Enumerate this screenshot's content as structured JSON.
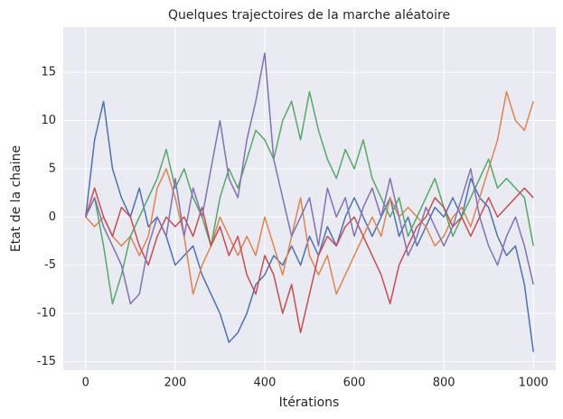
{
  "chart_data": {
    "type": "line",
    "title": "Quelques trajectoires de la marche aléatoire",
    "x_label": "Itérations",
    "y_label": "Etat de la chaine",
    "x": [
      0,
      20,
      40,
      60,
      80,
      100,
      120,
      140,
      160,
      180,
      200,
      220,
      240,
      260,
      280,
      300,
      320,
      340,
      360,
      380,
      400,
      420,
      440,
      460,
      480,
      500,
      520,
      540,
      560,
      580,
      600,
      620,
      640,
      660,
      680,
      700,
      720,
      740,
      760,
      780,
      800,
      820,
      840,
      860,
      880,
      900,
      920,
      940,
      960,
      980,
      1000
    ],
    "series": [
      {
        "color": "#4c72b0",
        "values": [
          0,
          8,
          12,
          5,
          2,
          0,
          3,
          -1,
          0,
          -2,
          -5,
          -4,
          -3,
          -6,
          -8,
          -10,
          -13,
          -12,
          -10,
          -7,
          -6,
          -4,
          -5,
          -3,
          -5,
          -2,
          -4,
          -1,
          -3,
          0,
          2,
          0,
          -2,
          0,
          2,
          -2,
          0,
          -3,
          -1,
          1,
          0,
          2,
          0,
          4,
          2,
          1,
          -2,
          -4,
          -3,
          -7,
          -14
        ]
      },
      {
        "color": "#dd8452",
        "values": [
          0,
          -1,
          0,
          -2,
          -3,
          -2,
          -4,
          -2,
          3,
          5,
          2,
          -2,
          -8,
          -5,
          -3,
          0,
          -2,
          -4,
          -2,
          -4,
          0,
          -3,
          -6,
          -2,
          2,
          -4,
          -6,
          -4,
          -8,
          -6,
          -4,
          -2,
          0,
          -2,
          2,
          0,
          1,
          0,
          -1,
          -3,
          -2,
          0,
          1,
          -1,
          2,
          5,
          8,
          13,
          10,
          9,
          12
        ]
      },
      {
        "color": "#55a868",
        "values": [
          0,
          2,
          -3,
          -9,
          -6,
          -2,
          0,
          2,
          4,
          7,
          3,
          5,
          2,
          0,
          -3,
          2,
          5,
          3,
          6,
          9,
          8,
          6,
          10,
          12,
          8,
          13,
          9,
          6,
          4,
          7,
          5,
          8,
          4,
          2,
          0,
          2,
          -2,
          0,
          2,
          4,
          1,
          -2,
          0,
          2,
          4,
          6,
          3,
          4,
          3,
          2,
          -3
        ]
      },
      {
        "color": "#c44e52",
        "values": [
          0,
          3,
          0,
          -2,
          1,
          0,
          -3,
          -5,
          -2,
          0,
          -1,
          0,
          -2,
          1,
          -3,
          -1,
          -4,
          -2,
          -6,
          -8,
          -4,
          -6,
          -10,
          -7,
          -12,
          -8,
          -4,
          -2,
          -3,
          -1,
          0,
          -2,
          -4,
          -6,
          -9,
          -5,
          -3,
          -1,
          0,
          2,
          1,
          -1,
          0,
          -2,
          0,
          2,
          0,
          1,
          2,
          3,
          2
        ]
      },
      {
        "color": "#8172b3",
        "values": [
          0,
          2,
          -1,
          -3,
          -5,
          -9,
          -8,
          -3,
          0,
          -2,
          4,
          -2,
          3,
          0,
          5,
          10,
          4,
          2,
          8,
          12,
          17,
          6,
          2,
          -2,
          0,
          2,
          -3,
          3,
          0,
          2,
          -2,
          1,
          3,
          0,
          4,
          0,
          -4,
          -2,
          1,
          -1,
          -3,
          -1,
          2,
          5,
          0,
          -3,
          -5,
          -2,
          0,
          -3,
          -7
        ]
      }
    ],
    "xlim": [
      -50,
      1050
    ],
    "ylim": [
      -15.9,
      19.7
    ],
    "xticks": [
      0,
      200,
      400,
      600,
      800,
      1000
    ],
    "yticks": [
      -15,
      -10,
      -5,
      0,
      5,
      10,
      15
    ],
    "grid": true
  }
}
